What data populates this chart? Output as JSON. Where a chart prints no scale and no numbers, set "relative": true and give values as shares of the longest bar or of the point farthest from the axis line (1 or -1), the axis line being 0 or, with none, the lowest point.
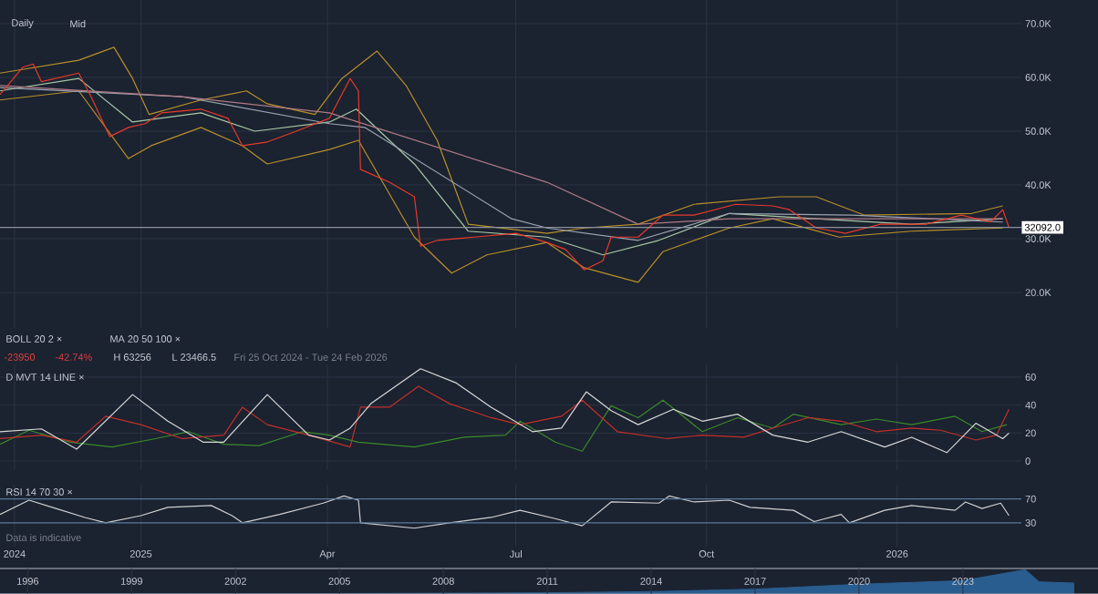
{
  "chart_data": [
    {
      "type": "line",
      "xlim": [
        "2024-10-25",
        "2026-03-02"
      ],
      "ylim": [
        13.4,
        74.4
      ],
      "grid": true,
      "tick_labels": "y",
      "xticks": [
        {
          "value": "2024-11-01",
          "label": null
        },
        {
          "value": "2025-01-01",
          "label": null
        },
        {
          "value": "2025-04-01",
          "label": null
        },
        {
          "value": "2025-07-01",
          "label": null
        },
        {
          "value": "2025-10-01",
          "label": null
        },
        {
          "value": "2026-01-01",
          "label": null
        }
      ],
      "yticks": [
        {
          "value": 20,
          "label": "20.0K"
        },
        {
          "value": 30,
          "label": "30.0K"
        },
        {
          "value": 40,
          "label": "40.0K"
        },
        {
          "value": 50,
          "label": "50.0K"
        },
        {
          "value": 60,
          "label": "60.0K"
        },
        {
          "value": 70,
          "label": "70.0K"
        }
      ],
      "series": [
        {
          "color": "#b8902a",
          "x": [
            "2024-10-25",
            "2024-12-02",
            "2024-12-19",
            "2024-12-28",
            "2025-01-05",
            "2025-01-30",
            "2025-02-21",
            "2025-03-03",
            "2025-03-26",
            "2025-04-08",
            "2025-04-25",
            "2025-05-09",
            "2025-05-24",
            "2025-06-08",
            "2025-07-16",
            "2025-08-03",
            "2025-08-29",
            "2025-09-25",
            "2025-11-05",
            "2025-11-23",
            "2025-12-16",
            "2026-02-06",
            "2026-02-21"
          ],
          "values": [
            60.8,
            63.2,
            65.6,
            59.8,
            53.1,
            55.8,
            57.5,
            55.1,
            53.1,
            59.8,
            64.9,
            58.5,
            48.3,
            32.7,
            31.0,
            32.0,
            32.7,
            36.4,
            37.8,
            37.8,
            34.4,
            34.7,
            36.1
          ]
        },
        {
          "color": "#b8902a",
          "x": [
            "2024-10-25",
            "2024-12-02",
            "2024-12-26",
            "2025-01-06",
            "2025-01-30",
            "2025-02-19",
            "2025-03-03",
            "2025-04-02",
            "2025-04-16",
            "2025-05-13",
            "2025-05-31",
            "2025-06-17",
            "2025-07-16",
            "2025-08-03",
            "2025-08-29",
            "2025-09-10",
            "2025-10-12",
            "2025-11-02",
            "2025-12-04",
            "2026-01-08",
            "2026-02-21"
          ],
          "values": [
            55.8,
            57.5,
            44.9,
            47.3,
            50.7,
            47.3,
            43.9,
            46.6,
            48.3,
            30.3,
            23.6,
            27.0,
            29.3,
            24.6,
            21.9,
            27.6,
            32.0,
            33.7,
            30.3,
            31.4,
            32.0
          ]
        },
        {
          "color": "#a9c9a4",
          "x": [
            "2024-10-25",
            "2024-12-02",
            "2024-12-28",
            "2025-01-30",
            "2025-02-25",
            "2025-04-02",
            "2025-04-15",
            "2025-05-13",
            "2025-06-08",
            "2025-07-16",
            "2025-08-12",
            "2025-09-08",
            "2025-10-12",
            "2025-11-23",
            "2026-01-08",
            "2026-02-21"
          ],
          "values": [
            57.5,
            59.8,
            51.7,
            53.4,
            50.0,
            51.7,
            54.1,
            43.9,
            31.4,
            30.3,
            27.0,
            29.7,
            34.7,
            33.7,
            32.7,
            33.7
          ]
        },
        {
          "color": "#9aa3b0",
          "x": [
            "2024-10-25",
            "2025-01-21",
            "2025-04-02",
            "2025-04-19",
            "2025-06-29",
            "2025-07-16",
            "2025-08-29",
            "2025-10-12",
            "2025-12-10",
            "2026-02-21"
          ],
          "values": [
            58.1,
            56.4,
            51.4,
            50.7,
            33.7,
            32.0,
            29.7,
            34.7,
            34.4,
            33.1
          ]
        },
        {
          "color": "#b07a86",
          "x": [
            "2024-10-25",
            "2025-01-21",
            "2025-04-02",
            "2025-07-16",
            "2025-08-29",
            "2025-10-12",
            "2026-02-21"
          ],
          "values": [
            58.5,
            56.4,
            53.4,
            40.5,
            32.7,
            33.7,
            33.7
          ]
        },
        {
          "color": "#e83a2a",
          "x": [
            "2024-10-25",
            "2024-11-05",
            "2024-11-10",
            "2024-11-14",
            "2024-12-02",
            "2024-12-08",
            "2024-12-17",
            "2024-12-26",
            "2025-01-03",
            "2025-01-11",
            "2025-01-30",
            "2025-02-12",
            "2025-02-19",
            "2025-03-03",
            "2025-03-15",
            "2025-04-02",
            "2025-04-12",
            "2025-04-16",
            "2025-04-17",
            "2025-05-01",
            "2025-05-13",
            "2025-05-16",
            "2025-05-24",
            "2025-06-11",
            "2025-07-01",
            "2025-07-16",
            "2025-07-25",
            "2025-08-03",
            "2025-08-12",
            "2025-08-16",
            "2025-08-29",
            "2025-09-10",
            "2025-09-25",
            "2025-10-15",
            "2025-11-02",
            "2025-11-10",
            "2025-11-23",
            "2025-12-07",
            "2025-12-24",
            "2026-01-15",
            "2026-02-01",
            "2026-02-15",
            "2026-02-21",
            "2026-02-24"
          ],
          "values": [
            56.8,
            61.9,
            62.5,
            59.2,
            60.8,
            56.4,
            49.0,
            50.7,
            51.4,
            53.4,
            54.1,
            52.4,
            47.3,
            48.0,
            49.7,
            52.4,
            59.8,
            57.5,
            42.9,
            40.5,
            37.8,
            28.6,
            29.7,
            30.3,
            31.0,
            29.3,
            28.0,
            24.2,
            25.9,
            30.3,
            30.3,
            34.4,
            34.4,
            36.4,
            36.1,
            35.4,
            32.0,
            31.0,
            32.7,
            32.7,
            34.4,
            33.1,
            35.4,
            32.1
          ]
        }
      ],
      "ref_lines": [
        {
          "axis": "y",
          "value": 32.092,
          "label": "32092.0",
          "color": "#8a919c"
        }
      ],
      "annotations": [
        "Daily",
        "Mid",
        "BOLL 20 2 ×",
        "MA 20 50 100 ×",
        "-23950",
        "-42.74%",
        "H 63256",
        "L 23466.5",
        "Fri 25 Oct 2024 - Tue 24 Feb 2026"
      ]
    },
    {
      "type": "line",
      "xlim": [
        "2024-10-25",
        "2026-03-02"
      ],
      "ylim": [
        -6.5,
        69.1
      ],
      "grid": true,
      "tick_labels": "y",
      "xticks": [
        {
          "value": "2024-11-01",
          "label": null
        },
        {
          "value": "2025-01-01",
          "label": null
        },
        {
          "value": "2025-04-01",
          "label": null
        },
        {
          "value": "2025-07-01",
          "label": null
        },
        {
          "value": "2025-10-01",
          "label": null
        },
        {
          "value": "2026-01-01",
          "label": null
        }
      ],
      "yticks": [
        0,
        20,
        40,
        60
      ],
      "series": [
        {
          "color": "#3a8a2a",
          "x": [
            "2024-10-25",
            "2024-11-08",
            "2024-11-28",
            "2024-12-18",
            "2025-01-08",
            "2025-01-24",
            "2025-02-10",
            "2025-02-27",
            "2025-03-20",
            "2025-04-02",
            "2025-04-16",
            "2025-05-13",
            "2025-06-06",
            "2025-06-26",
            "2025-07-03",
            "2025-07-20",
            "2025-08-02",
            "2025-08-16",
            "2025-08-29",
            "2025-09-10",
            "2025-09-29",
            "2025-10-16",
            "2025-11-02",
            "2025-11-12",
            "2025-12-05",
            "2025-12-22",
            "2026-01-08",
            "2026-01-29",
            "2026-02-11",
            "2026-02-23"
          ],
          "values": [
            12,
            22,
            13.5,
            10,
            16,
            21,
            12,
            11,
            21,
            18.5,
            13.5,
            10,
            17,
            18.5,
            28.5,
            13.5,
            7,
            39.5,
            31,
            43.5,
            21,
            31,
            23.5,
            33.5,
            26,
            30,
            26,
            32,
            21,
            26
          ]
        },
        {
          "color": "#c0302a",
          "x": [
            "2024-10-25",
            "2024-11-14",
            "2024-12-01",
            "2024-12-15",
            "2025-01-01",
            "2025-01-21",
            "2025-02-10",
            "2025-02-19",
            "2025-03-03",
            "2025-03-23",
            "2025-04-12",
            "2025-04-17",
            "2025-05-01",
            "2025-05-15",
            "2025-05-30",
            "2025-06-19",
            "2025-07-03",
            "2025-07-23",
            "2025-08-02",
            "2025-08-19",
            "2025-09-12",
            "2025-09-29",
            "2025-10-19",
            "2025-11-02",
            "2025-11-19",
            "2025-12-05",
            "2025-12-22",
            "2026-01-08",
            "2026-01-22",
            "2026-02-08",
            "2026-02-18",
            "2026-02-24"
          ],
          "values": [
            16,
            18.5,
            13.5,
            32,
            26,
            16,
            18.5,
            38.5,
            26,
            18.5,
            10,
            38.5,
            38.5,
            53.5,
            41,
            31,
            26,
            32,
            43.5,
            21,
            16,
            18.5,
            17,
            23.5,
            31,
            28.5,
            21,
            23.5,
            22,
            15,
            18.5,
            37
          ]
        },
        {
          "color": "#d8d8d8",
          "x": [
            "2024-10-25",
            "2024-11-14",
            "2024-12-01",
            "2024-12-28",
            "2025-01-14",
            "2025-01-31",
            "2025-02-10",
            "2025-03-03",
            "2025-03-23",
            "2025-04-02",
            "2025-04-12",
            "2025-04-22",
            "2025-05-16",
            "2025-06-02",
            "2025-06-19",
            "2025-07-09",
            "2025-07-23",
            "2025-08-04",
            "2025-08-16",
            "2025-08-29",
            "2025-09-15",
            "2025-09-29",
            "2025-10-16",
            "2025-11-02",
            "2025-11-19",
            "2025-12-05",
            "2025-12-26",
            "2026-01-08",
            "2026-01-25",
            "2026-02-08",
            "2026-02-21",
            "2026-02-24"
          ],
          "values": [
            21,
            23,
            8.5,
            47.5,
            28.5,
            13.5,
            13.5,
            47.5,
            18.5,
            15,
            23.5,
            41,
            66,
            56,
            38.5,
            21,
            23.5,
            49.5,
            36,
            26,
            37,
            28.5,
            33.5,
            18.5,
            13.5,
            21,
            10,
            17,
            6,
            27,
            16,
            20
          ]
        }
      ],
      "annotations": [
        "D MVT 14 LINE ×"
      ]
    },
    {
      "type": "line",
      "xlim": [
        "2024-10-25",
        "2026-03-02"
      ],
      "ylim": [
        -10,
        94
      ],
      "grid": "x",
      "xticks": [
        {
          "value": "2024-11-01",
          "label": "2024"
        },
        {
          "value": "2025-01-01",
          "label": "2025"
        },
        {
          "value": "2025-04-01",
          "label": "Apr"
        },
        {
          "value": "2025-07-01",
          "label": "Jul"
        },
        {
          "value": "2025-10-01",
          "label": "Oct"
        },
        {
          "value": "2026-01-01",
          "label": "2026"
        }
      ],
      "yticks": [
        30,
        70
      ],
      "series": [
        {
          "color": "#d0d0d0",
          "x": [
            "2024-10-25",
            "2024-11-08",
            "2024-11-21",
            "2024-12-05",
            "2024-12-15",
            "2025-01-01",
            "2025-01-14",
            "2025-02-04",
            "2025-02-14",
            "2025-02-19",
            "2025-03-09",
            "2025-03-30",
            "2025-04-09",
            "2025-04-16",
            "2025-04-17",
            "2025-05-13",
            "2025-05-30",
            "2025-06-19",
            "2025-07-03",
            "2025-07-20",
            "2025-08-02",
            "2025-08-16",
            "2025-09-08",
            "2025-09-13",
            "2025-09-25",
            "2025-10-12",
            "2025-10-22",
            "2025-11-12",
            "2025-11-22",
            "2025-12-05",
            "2025-12-09",
            "2025-12-26",
            "2026-01-08",
            "2026-01-29",
            "2026-02-03",
            "2026-02-11",
            "2026-02-20",
            "2026-02-24"
          ],
          "values": [
            44,
            68,
            54,
            39,
            30,
            42,
            56,
            59,
            42,
            30,
            44,
            63,
            75,
            68,
            30,
            21,
            30,
            39,
            51,
            37,
            25,
            65,
            63,
            75,
            65,
            68,
            56,
            51,
            32,
            44,
            30,
            51,
            59,
            51,
            65,
            54,
            63,
            42
          ]
        }
      ],
      "ref_lines": [
        {
          "axis": "y",
          "value": 70,
          "color": "#5a7a9a"
        },
        {
          "axis": "y",
          "value": 30,
          "color": "#5a7a9a"
        }
      ],
      "annotations": [
        "RSI 14 70 30 ×",
        "Data is indicative"
      ]
    },
    {
      "type": "area",
      "relative": true,
      "xlim": [
        1995.2,
        2026.9
      ],
      "tick_labels": "x",
      "grid": "x",
      "xticks": [
        1996,
        1999,
        2002,
        2005,
        2008,
        2011,
        2014,
        2017,
        2020,
        2023
      ],
      "series": [
        {
          "color": "#2a5d8f",
          "x": [
            1995.2,
            1996,
            2005,
            2011,
            2014,
            2017,
            2020,
            2023,
            2024.8,
            2025.2,
            2026.2
          ],
          "values": [
            0,
            0,
            0.02,
            0.05,
            0.1,
            0.2,
            0.4,
            0.55,
            1,
            0.5,
            0.45
          ]
        }
      ]
    }
  ]
}
